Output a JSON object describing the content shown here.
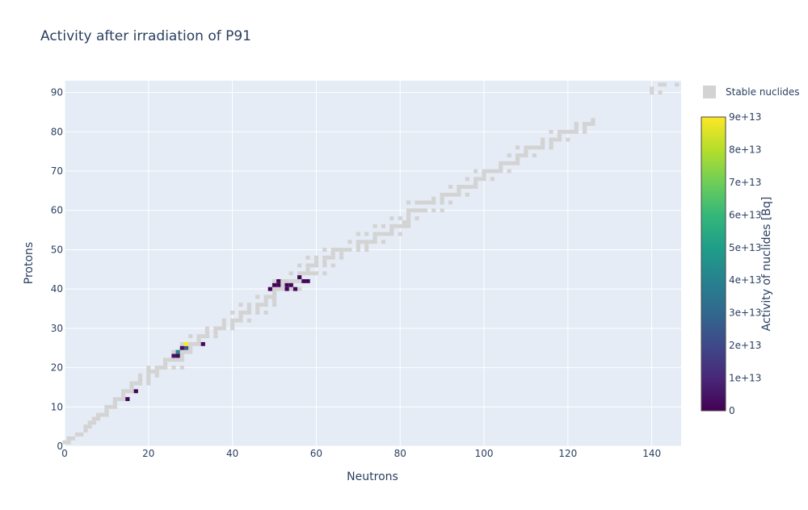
{
  "chart_data": {
    "type": "heatmap",
    "title": "Activity after irradiation of P91",
    "xlabel": "Neutrons",
    "ylabel": "Protons",
    "xlim": [
      0,
      147
    ],
    "ylim": [
      0,
      93
    ],
    "x_ticks": [
      0,
      20,
      40,
      60,
      80,
      100,
      120,
      140
    ],
    "y_ticks": [
      0,
      10,
      20,
      30,
      40,
      50,
      60,
      70,
      80,
      90
    ],
    "grid": true,
    "legend": {
      "position": "top-right",
      "entries": [
        {
          "name": "Stable nuclides",
          "color": "#d3d3d3"
        }
      ]
    },
    "colorbar": {
      "title": "Activity of nuclides [Bq]",
      "colorscale": "Viridis",
      "range": [
        0,
        90000000000000.0
      ],
      "tick_labels": [
        "0",
        "1e+13",
        "2e+13",
        "3e+13",
        "4e+13",
        "5e+13",
        "6e+13",
        "7e+13",
        "8e+13",
        "9e+13"
      ],
      "tick_values": [
        0,
        10000000000000.0,
        20000000000000.0,
        30000000000000.0,
        40000000000000.0,
        50000000000000.0,
        60000000000000.0,
        70000000000000.0,
        80000000000000.0,
        90000000000000.0
      ]
    },
    "stable_nuclides_color": "#d3d3d3",
    "stable_nuclides": [
      [
        0,
        1
      ],
      [
        1,
        1
      ],
      [
        1,
        2
      ],
      [
        2,
        2
      ],
      [
        3,
        3
      ],
      [
        4,
        3
      ],
      [
        5,
        4
      ],
      [
        5,
        5
      ],
      [
        6,
        5
      ],
      [
        6,
        6
      ],
      [
        7,
        6
      ],
      [
        7,
        7
      ],
      [
        8,
        7
      ],
      [
        8,
        8
      ],
      [
        9,
        8
      ],
      [
        10,
        8
      ],
      [
        10,
        9
      ],
      [
        10,
        10
      ],
      [
        11,
        10
      ],
      [
        12,
        10
      ],
      [
        12,
        11
      ],
      [
        12,
        12
      ],
      [
        13,
        12
      ],
      [
        14,
        12
      ],
      [
        14,
        13
      ],
      [
        14,
        14
      ],
      [
        15,
        14
      ],
      [
        16,
        14
      ],
      [
        16,
        15
      ],
      [
        16,
        16
      ],
      [
        17,
        16
      ],
      [
        18,
        16
      ],
      [
        20,
        16
      ],
      [
        18,
        17
      ],
      [
        20,
        17
      ],
      [
        18,
        18
      ],
      [
        20,
        18
      ],
      [
        22,
        18
      ],
      [
        20,
        19
      ],
      [
        21,
        19
      ],
      [
        22,
        19
      ],
      [
        20,
        20
      ],
      [
        22,
        20
      ],
      [
        23,
        20
      ],
      [
        24,
        20
      ],
      [
        26,
        20
      ],
      [
        28,
        20
      ],
      [
        24,
        21
      ],
      [
        24,
        22
      ],
      [
        25,
        22
      ],
      [
        26,
        22
      ],
      [
        27,
        22
      ],
      [
        28,
        22
      ],
      [
        27,
        23
      ],
      [
        28,
        23
      ],
      [
        26,
        24
      ],
      [
        28,
        24
      ],
      [
        29,
        24
      ],
      [
        30,
        24
      ],
      [
        30,
        25
      ],
      [
        28,
        26
      ],
      [
        30,
        26
      ],
      [
        31,
        26
      ],
      [
        32,
        26
      ],
      [
        32,
        27
      ],
      [
        30,
        28
      ],
      [
        32,
        28
      ],
      [
        33,
        28
      ],
      [
        34,
        28
      ],
      [
        36,
        28
      ],
      [
        34,
        29
      ],
      [
        36,
        29
      ],
      [
        34,
        30
      ],
      [
        36,
        30
      ],
      [
        37,
        30
      ],
      [
        38,
        30
      ],
      [
        40,
        30
      ],
      [
        38,
        31
      ],
      [
        40,
        31
      ],
      [
        38,
        32
      ],
      [
        40,
        32
      ],
      [
        41,
        32
      ],
      [
        42,
        32
      ],
      [
        44,
        32
      ],
      [
        42,
        33
      ],
      [
        40,
        34
      ],
      [
        42,
        34
      ],
      [
        43,
        34
      ],
      [
        44,
        34
      ],
      [
        46,
        34
      ],
      [
        48,
        34
      ],
      [
        44,
        35
      ],
      [
        46,
        35
      ],
      [
        42,
        36
      ],
      [
        44,
        36
      ],
      [
        46,
        36
      ],
      [
        47,
        36
      ],
      [
        48,
        36
      ],
      [
        50,
        36
      ],
      [
        48,
        37
      ],
      [
        50,
        37
      ],
      [
        46,
        38
      ],
      [
        48,
        38
      ],
      [
        49,
        38
      ],
      [
        50,
        38
      ],
      [
        50,
        39
      ],
      [
        50,
        40
      ],
      [
        51,
        40
      ],
      [
        52,
        40
      ],
      [
        54,
        40
      ],
      [
        56,
        40
      ],
      [
        52,
        41
      ],
      [
        50,
        42
      ],
      [
        52,
        42
      ],
      [
        53,
        42
      ],
      [
        54,
        42
      ],
      [
        55,
        42
      ],
      [
        56,
        42
      ],
      [
        58,
        42
      ],
      [
        54,
        44
      ],
      [
        56,
        44
      ],
      [
        57,
        44
      ],
      [
        58,
        44
      ],
      [
        59,
        44
      ],
      [
        60,
        44
      ],
      [
        62,
        44
      ],
      [
        58,
        45
      ],
      [
        56,
        46
      ],
      [
        58,
        46
      ],
      [
        59,
        46
      ],
      [
        60,
        46
      ],
      [
        62,
        46
      ],
      [
        64,
        46
      ],
      [
        60,
        47
      ],
      [
        62,
        47
      ],
      [
        58,
        48
      ],
      [
        60,
        48
      ],
      [
        62,
        48
      ],
      [
        63,
        48
      ],
      [
        64,
        48
      ],
      [
        66,
        48
      ],
      [
        64,
        49
      ],
      [
        66,
        49
      ],
      [
        62,
        50
      ],
      [
        64,
        50
      ],
      [
        65,
        50
      ],
      [
        66,
        50
      ],
      [
        67,
        50
      ],
      [
        68,
        50
      ],
      [
        70,
        50
      ],
      [
        72,
        50
      ],
      [
        70,
        51
      ],
      [
        72,
        51
      ],
      [
        68,
        52
      ],
      [
        70,
        52
      ],
      [
        71,
        52
      ],
      [
        72,
        52
      ],
      [
        73,
        52
      ],
      [
        74,
        52
      ],
      [
        76,
        52
      ],
      [
        74,
        53
      ],
      [
        70,
        54
      ],
      [
        72,
        54
      ],
      [
        74,
        54
      ],
      [
        75,
        54
      ],
      [
        76,
        54
      ],
      [
        77,
        54
      ],
      [
        78,
        54
      ],
      [
        80,
        54
      ],
      [
        78,
        55
      ],
      [
        74,
        56
      ],
      [
        76,
        56
      ],
      [
        78,
        56
      ],
      [
        79,
        56
      ],
      [
        80,
        56
      ],
      [
        81,
        56
      ],
      [
        82,
        56
      ],
      [
        81,
        57
      ],
      [
        82,
        57
      ],
      [
        78,
        58
      ],
      [
        80,
        58
      ],
      [
        82,
        58
      ],
      [
        84,
        58
      ],
      [
        82,
        59
      ],
      [
        82,
        60
      ],
      [
        83,
        60
      ],
      [
        84,
        60
      ],
      [
        85,
        60
      ],
      [
        86,
        60
      ],
      [
        88,
        60
      ],
      [
        90,
        60
      ],
      [
        82,
        62
      ],
      [
        84,
        62
      ],
      [
        85,
        62
      ],
      [
        86,
        62
      ],
      [
        87,
        62
      ],
      [
        88,
        62
      ],
      [
        90,
        62
      ],
      [
        92,
        62
      ],
      [
        88,
        63
      ],
      [
        90,
        63
      ],
      [
        90,
        64
      ],
      [
        91,
        64
      ],
      [
        92,
        64
      ],
      [
        93,
        64
      ],
      [
        94,
        64
      ],
      [
        96,
        64
      ],
      [
        94,
        65
      ],
      [
        92,
        66
      ],
      [
        94,
        66
      ],
      [
        95,
        66
      ],
      [
        96,
        66
      ],
      [
        97,
        66
      ],
      [
        98,
        66
      ],
      [
        98,
        67
      ],
      [
        96,
        68
      ],
      [
        98,
        68
      ],
      [
        99,
        68
      ],
      [
        100,
        68
      ],
      [
        102,
        68
      ],
      [
        100,
        69
      ],
      [
        98,
        70
      ],
      [
        100,
        70
      ],
      [
        101,
        70
      ],
      [
        102,
        70
      ],
      [
        103,
        70
      ],
      [
        104,
        70
      ],
      [
        106,
        70
      ],
      [
        104,
        71
      ],
      [
        104,
        72
      ],
      [
        105,
        72
      ],
      [
        106,
        72
      ],
      [
        107,
        72
      ],
      [
        108,
        72
      ],
      [
        108,
        73
      ],
      [
        106,
        74
      ],
      [
        108,
        74
      ],
      [
        109,
        74
      ],
      [
        110,
        74
      ],
      [
        112,
        74
      ],
      [
        110,
        75
      ],
      [
        108,
        76
      ],
      [
        110,
        76
      ],
      [
        111,
        76
      ],
      [
        112,
        76
      ],
      [
        113,
        76
      ],
      [
        114,
        76
      ],
      [
        116,
        76
      ],
      [
        114,
        77
      ],
      [
        116,
        77
      ],
      [
        114,
        78
      ],
      [
        116,
        78
      ],
      [
        117,
        78
      ],
      [
        118,
        78
      ],
      [
        120,
        78
      ],
      [
        118,
        79
      ],
      [
        116,
        80
      ],
      [
        118,
        80
      ],
      [
        119,
        80
      ],
      [
        120,
        80
      ],
      [
        121,
        80
      ],
      [
        122,
        80
      ],
      [
        124,
        80
      ],
      [
        122,
        81
      ],
      [
        124,
        81
      ],
      [
        122,
        82
      ],
      [
        124,
        82
      ],
      [
        125,
        82
      ],
      [
        126,
        82
      ],
      [
        126,
        83
      ],
      [
        140,
        90
      ],
      [
        142,
        90
      ],
      [
        142,
        92
      ],
      [
        143,
        92
      ],
      [
        146,
        92
      ],
      [
        140,
        91
      ]
    ],
    "activated_nuclides": [
      {
        "n": 15,
        "z": 12,
        "activity": 1000000000000.0
      },
      {
        "n": 17,
        "z": 14,
        "activity": 1000000000000.0
      },
      {
        "n": 26,
        "z": 23,
        "activity": 3000000000000.0
      },
      {
        "n": 27,
        "z": 23,
        "activity": 2000000000000.0
      },
      {
        "n": 27,
        "z": 24,
        "activity": 42000000000000.0
      },
      {
        "n": 28,
        "z": 25,
        "activity": 3000000000000.0
      },
      {
        "n": 29,
        "z": 25,
        "activity": 25000000000000.0
      },
      {
        "n": 29,
        "z": 26,
        "activity": 90000000000000.0
      },
      {
        "n": 33,
        "z": 26,
        "activity": 1500000000000.0
      },
      {
        "n": 49,
        "z": 40,
        "activity": 1000000000000.0
      },
      {
        "n": 50,
        "z": 41,
        "activity": 1000000000000.0
      },
      {
        "n": 51,
        "z": 41,
        "activity": 1000000000000.0
      },
      {
        "n": 51,
        "z": 42,
        "activity": 1000000000000.0
      },
      {
        "n": 53,
        "z": 40,
        "activity": 1000000000000.0
      },
      {
        "n": 53,
        "z": 41,
        "activity": 1000000000000.0
      },
      {
        "n": 54,
        "z": 41,
        "activity": 1000000000000.0
      },
      {
        "n": 55,
        "z": 40,
        "activity": 1000000000000.0
      },
      {
        "n": 56,
        "z": 43,
        "activity": 1000000000000.0
      },
      {
        "n": 57,
        "z": 42,
        "activity": 1000000000000.0
      },
      {
        "n": 58,
        "z": 42,
        "activity": 1000000000000.0
      }
    ]
  },
  "layout": {
    "plot_bg": "#e5ecf6",
    "grid_color": "#ffffff",
    "text_color": "#2a3f5f",
    "viridis": [
      "#440154",
      "#482878",
      "#3e4989",
      "#31688e",
      "#26828e",
      "#1f9e89",
      "#35b779",
      "#6ece58",
      "#b5de2b",
      "#fde725"
    ]
  }
}
